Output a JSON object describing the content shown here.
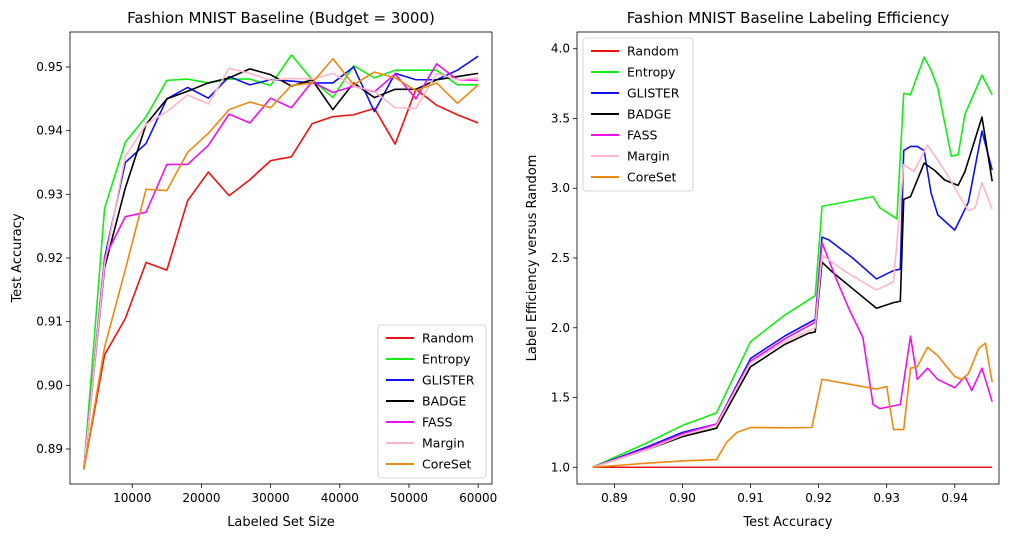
{
  "colors": {
    "Random": "#ee1111",
    "Entropy": "#11ee11",
    "GLISTER": "#1111ee",
    "BADGE": "#000000",
    "FASS": "#ee11ee",
    "Margin": "#ffb6c8",
    "CoreSet": "#ee8811"
  },
  "chart_data": [
    {
      "type": "line",
      "title": "Fashion MNIST Baseline (Budget = 3000)",
      "xlabel": "Labeled Set Size",
      "ylabel": "Test Accuracy",
      "xlim": [
        1000,
        62000
      ],
      "ylim": [
        0.8845,
        0.9555
      ],
      "xticks": [
        10000,
        20000,
        30000,
        40000,
        50000,
        60000
      ],
      "yticks": [
        0.89,
        0.9,
        0.91,
        0.92,
        0.93,
        0.94,
        0.95
      ],
      "ytick_labels": [
        "0.89",
        "0.90",
        "0.91",
        "0.92",
        "0.93",
        "0.94",
        "0.95"
      ],
      "legend": "lower-right",
      "x": [
        3000,
        6000,
        9000,
        12000,
        15000,
        18000,
        21000,
        24000,
        27000,
        30000,
        33000,
        36000,
        39000,
        42000,
        45000,
        48000,
        51000,
        54000,
        57000,
        60000
      ],
      "series": [
        {
          "name": "Random",
          "values": [
            0.8868,
            0.9048,
            0.9105,
            0.9193,
            0.9181,
            0.929,
            0.9335,
            0.9298,
            0.9323,
            0.9353,
            0.9359,
            0.9411,
            0.9422,
            0.9425,
            0.9435,
            0.9379,
            0.9465,
            0.944,
            0.9425,
            0.9412
          ]
        },
        {
          "name": "Entropy",
          "values": [
            0.8868,
            0.9278,
            0.9382,
            0.9422,
            0.9479,
            0.9481,
            0.9475,
            0.9481,
            0.9481,
            0.9471,
            0.9519,
            0.948,
            0.9452,
            0.9502,
            0.9483,
            0.9495,
            0.9495,
            0.9495,
            0.9472,
            0.9472
          ]
        },
        {
          "name": "GLISTER",
          "values": [
            0.8868,
            0.92,
            0.935,
            0.938,
            0.945,
            0.9468,
            0.9451,
            0.9485,
            0.9472,
            0.948,
            0.9478,
            0.9475,
            0.9475,
            0.95,
            0.943,
            0.949,
            0.948,
            0.948,
            0.9495,
            0.9517
          ]
        },
        {
          "name": "BADGE",
          "values": [
            0.8868,
            0.9185,
            0.931,
            0.941,
            0.945,
            0.9462,
            0.9475,
            0.9483,
            0.9497,
            0.9488,
            0.947,
            0.948,
            0.9433,
            0.9475,
            0.9452,
            0.9465,
            0.9465,
            0.948,
            0.9485,
            0.949
          ]
        },
        {
          "name": "FASS",
          "values": [
            0.8868,
            0.92,
            0.9265,
            0.9272,
            0.9347,
            0.9347,
            0.9377,
            0.9426,
            0.9412,
            0.9451,
            0.9436,
            0.9477,
            0.946,
            0.947,
            0.9461,
            0.9489,
            0.945,
            0.9505,
            0.948,
            0.9479
          ]
        },
        {
          "name": "Margin",
          "values": [
            0.8868,
            0.919,
            0.936,
            0.941,
            0.943,
            0.9456,
            0.9442,
            0.9498,
            0.949,
            0.9479,
            0.9482,
            0.9481,
            0.949,
            0.947,
            0.9462,
            0.9436,
            0.9435,
            0.949,
            0.948,
            0.9483
          ]
        },
        {
          "name": "CoreSet",
          "values": [
            0.8868,
            0.906,
            0.9182,
            0.9308,
            0.9306,
            0.9366,
            0.9396,
            0.9433,
            0.9445,
            0.9436,
            0.9471,
            0.9475,
            0.9513,
            0.9472,
            0.9492,
            0.9483,
            0.9463,
            0.9475,
            0.9443,
            0.9472
          ]
        }
      ]
    },
    {
      "type": "line",
      "title": "Fashion MNIST Baseline Labeling Efficiency",
      "xlabel": "Test Accuracy",
      "ylabel": "Label Efficiency versus Random",
      "xlim": [
        0.8845,
        0.9465
      ],
      "ylim": [
        0.88,
        4.12
      ],
      "xticks": [
        0.89,
        0.9,
        0.91,
        0.92,
        0.93,
        0.94
      ],
      "xtick_labels": [
        "0.89",
        "0.90",
        "0.91",
        "0.92",
        "0.93",
        "0.94"
      ],
      "yticks": [
        1.0,
        1.5,
        2.0,
        2.5,
        3.0,
        3.5,
        4.0
      ],
      "ytick_labels": [
        "1.0",
        "1.5",
        "2.0",
        "2.5",
        "3.0",
        "3.5",
        "4.0"
      ],
      "legend": "upper-left",
      "series": [
        {
          "name": "Random",
          "points": [
            [
              0.8868,
              1.0
            ],
            [
              0.9455,
              1.0
            ]
          ]
        },
        {
          "name": "Entropy",
          "points": [
            [
              0.8868,
              1.0
            ],
            [
              0.895,
              1.18
            ],
            [
              0.9,
              1.3
            ],
            [
              0.905,
              1.39
            ],
            [
              0.91,
              1.9
            ],
            [
              0.915,
              2.09
            ],
            [
              0.9195,
              2.23
            ],
            [
              0.9205,
              2.87
            ],
            [
              0.928,
              2.94
            ],
            [
              0.929,
              2.86
            ],
            [
              0.9315,
              2.78
            ],
            [
              0.9325,
              3.68
            ],
            [
              0.9335,
              3.67
            ],
            [
              0.9355,
              3.94
            ],
            [
              0.9365,
              3.85
            ],
            [
              0.9375,
              3.72
            ],
            [
              0.9395,
              3.23
            ],
            [
              0.9405,
              3.24
            ],
            [
              0.9415,
              3.53
            ],
            [
              0.944,
              3.81
            ],
            [
              0.9455,
              3.67
            ]
          ]
        },
        {
          "name": "GLISTER",
          "points": [
            [
              0.8868,
              1.0
            ],
            [
              0.895,
              1.15
            ],
            [
              0.9,
              1.25
            ],
            [
              0.905,
              1.31
            ],
            [
              0.91,
              1.78
            ],
            [
              0.915,
              1.94
            ],
            [
              0.9195,
              2.06
            ],
            [
              0.9205,
              2.65
            ],
            [
              0.9215,
              2.63
            ],
            [
              0.925,
              2.5
            ],
            [
              0.9285,
              2.35
            ],
            [
              0.931,
              2.41
            ],
            [
              0.932,
              2.42
            ],
            [
              0.9325,
              3.27
            ],
            [
              0.9335,
              3.3
            ],
            [
              0.9345,
              3.3
            ],
            [
              0.9355,
              3.27
            ],
            [
              0.9365,
              2.97
            ],
            [
              0.9375,
              2.81
            ],
            [
              0.94,
              2.7
            ],
            [
              0.942,
              2.9
            ],
            [
              0.944,
              3.41
            ],
            [
              0.9455,
              3.13
            ]
          ]
        },
        {
          "name": "BADGE",
          "points": [
            [
              0.8868,
              1.0
            ],
            [
              0.895,
              1.13
            ],
            [
              0.9,
              1.22
            ],
            [
              0.905,
              1.28
            ],
            [
              0.91,
              1.72
            ],
            [
              0.915,
              1.88
            ],
            [
              0.9185,
              1.96
            ],
            [
              0.9195,
              1.97
            ],
            [
              0.9205,
              2.47
            ],
            [
              0.922,
              2.4
            ],
            [
              0.925,
              2.28
            ],
            [
              0.9285,
              2.14
            ],
            [
              0.931,
              2.18
            ],
            [
              0.932,
              2.19
            ],
            [
              0.9325,
              2.92
            ],
            [
              0.9335,
              2.94
            ],
            [
              0.9355,
              3.18
            ],
            [
              0.937,
              3.13
            ],
            [
              0.9385,
              3.06
            ],
            [
              0.9405,
              3.02
            ],
            [
              0.9415,
              3.12
            ],
            [
              0.944,
              3.51
            ],
            [
              0.9455,
              3.05
            ]
          ]
        },
        {
          "name": "FASS",
          "points": [
            [
              0.8868,
              1.0
            ],
            [
              0.895,
              1.14
            ],
            [
              0.9,
              1.24
            ],
            [
              0.905,
              1.31
            ],
            [
              0.91,
              1.76
            ],
            [
              0.915,
              1.92
            ],
            [
              0.9195,
              2.04
            ],
            [
              0.9205,
              2.61
            ],
            [
              0.9225,
              2.36
            ],
            [
              0.9245,
              2.13
            ],
            [
              0.9265,
              1.93
            ],
            [
              0.928,
              1.45
            ],
            [
              0.929,
              1.42
            ],
            [
              0.932,
              1.45
            ],
            [
              0.9335,
              1.94
            ],
            [
              0.9345,
              1.63
            ],
            [
              0.936,
              1.71
            ],
            [
              0.9375,
              1.63
            ],
            [
              0.94,
              1.57
            ],
            [
              0.9415,
              1.65
            ],
            [
              0.9425,
              1.55
            ],
            [
              0.944,
              1.71
            ],
            [
              0.9455,
              1.47
            ]
          ]
        },
        {
          "name": "Margin",
          "points": [
            [
              0.8868,
              1.0
            ],
            [
              0.895,
              1.13
            ],
            [
              0.9,
              1.23
            ],
            [
              0.905,
              1.3
            ],
            [
              0.91,
              1.75
            ],
            [
              0.915,
              1.9
            ],
            [
              0.9195,
              2.0
            ],
            [
              0.9205,
              2.52
            ],
            [
              0.924,
              2.4
            ],
            [
              0.9285,
              2.27
            ],
            [
              0.931,
              2.33
            ],
            [
              0.9325,
              3.17
            ],
            [
              0.934,
              3.12
            ],
            [
              0.936,
              3.31
            ],
            [
              0.9375,
              3.2
            ],
            [
              0.939,
              3.09
            ],
            [
              0.9405,
              2.96
            ],
            [
              0.942,
              2.84
            ],
            [
              0.943,
              2.86
            ],
            [
              0.944,
              3.04
            ],
            [
              0.9455,
              2.85
            ]
          ]
        },
        {
          "name": "CoreSet",
          "points": [
            [
              0.8868,
              1.0
            ],
            [
              0.895,
              1.03
            ],
            [
              0.9,
              1.045
            ],
            [
              0.905,
              1.055
            ],
            [
              0.9065,
              1.18
            ],
            [
              0.908,
              1.25
            ],
            [
              0.91,
              1.285
            ],
            [
              0.915,
              1.283
            ],
            [
              0.919,
              1.285
            ],
            [
              0.9205,
              1.63
            ],
            [
              0.924,
              1.6
            ],
            [
              0.9285,
              1.56
            ],
            [
              0.93,
              1.58
            ],
            [
              0.931,
              1.27
            ],
            [
              0.9325,
              1.27
            ],
            [
              0.9335,
              1.71
            ],
            [
              0.9345,
              1.72
            ],
            [
              0.936,
              1.86
            ],
            [
              0.9375,
              1.8
            ],
            [
              0.94,
              1.65
            ],
            [
              0.941,
              1.63
            ],
            [
              0.942,
              1.67
            ],
            [
              0.9435,
              1.85
            ],
            [
              0.9445,
              1.89
            ],
            [
              0.9455,
              1.61
            ]
          ]
        }
      ]
    }
  ]
}
